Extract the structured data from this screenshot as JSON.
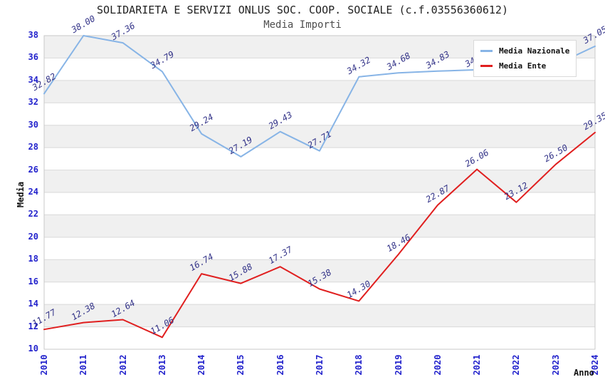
{
  "title": "SOLIDARIETA E SERVIZI ONLUS SOC. COOP. SOCIALE (c.f.03556360612)",
  "subtitle": "Media Importi",
  "axes": {
    "y_label": "Media",
    "x_label": "Anno",
    "y_ticks": [
      10,
      12,
      14,
      16,
      18,
      20,
      22,
      24,
      26,
      28,
      30,
      32,
      34,
      36,
      38
    ],
    "x_ticks": [
      "2010",
      "2011",
      "2012",
      "2013",
      "2014",
      "2015",
      "2016",
      "2017",
      "2018",
      "2019",
      "2020",
      "2021",
      "2022",
      "2023",
      "2024"
    ]
  },
  "colors": {
    "national_line": "#87b4e6",
    "ente_line": "#e01f1f",
    "tick_label": "#2222cc",
    "value_label": "#333388",
    "band_gray": "#f0f0f0",
    "band_white": "#ffffff",
    "grid": "#d9d9d9",
    "axis_frame": "#c9c9c9",
    "subtitle_text": "#4d4d4d"
  },
  "chart_data": {
    "type": "line",
    "title": "SOLIDARIETA E SERVIZI ONLUS SOC. COOP. SOCIALE (c.f.03556360612)",
    "subtitle": "Media Importi",
    "xlabel": "Anno",
    "ylabel": "Media",
    "ylim": [
      10,
      38
    ],
    "grid": true,
    "legend_position": "top-right",
    "x": [
      "2010",
      "2011",
      "2012",
      "2013",
      "2014",
      "2015",
      "2016",
      "2017",
      "2018",
      "2019",
      "2020",
      "2021",
      "2022",
      "2023",
      "2024"
    ],
    "series": [
      {
        "name": "Media Nazionale",
        "color": "#87b4e6",
        "values": [
          32.82,
          38.0,
          37.36,
          34.79,
          29.24,
          27.19,
          29.43,
          27.71,
          34.32,
          34.68,
          34.83,
          34.95,
          35.1,
          35.4,
          37.05
        ],
        "labels": [
          "32.82",
          "38.00",
          "37.36",
          "34.79",
          "29.24",
          "27.19",
          "29.43",
          "27.71",
          "34.32",
          "34.68",
          "34.83",
          "34.95",
          "",
          "",
          "37.05"
        ]
      },
      {
        "name": "Media Ente",
        "color": "#e01f1f",
        "values": [
          11.77,
          12.38,
          12.64,
          11.06,
          16.74,
          15.88,
          17.37,
          15.38,
          14.3,
          18.46,
          22.87,
          26.06,
          23.12,
          26.5,
          29.35
        ],
        "labels": [
          "11.77",
          "12.38",
          "12.64",
          "11.06",
          "16.74",
          "15.88",
          "17.37",
          "15.38",
          "14.30",
          "18.46",
          "22.87",
          "26.06",
          "23.12",
          "26.50",
          "29.35"
        ]
      }
    ]
  }
}
